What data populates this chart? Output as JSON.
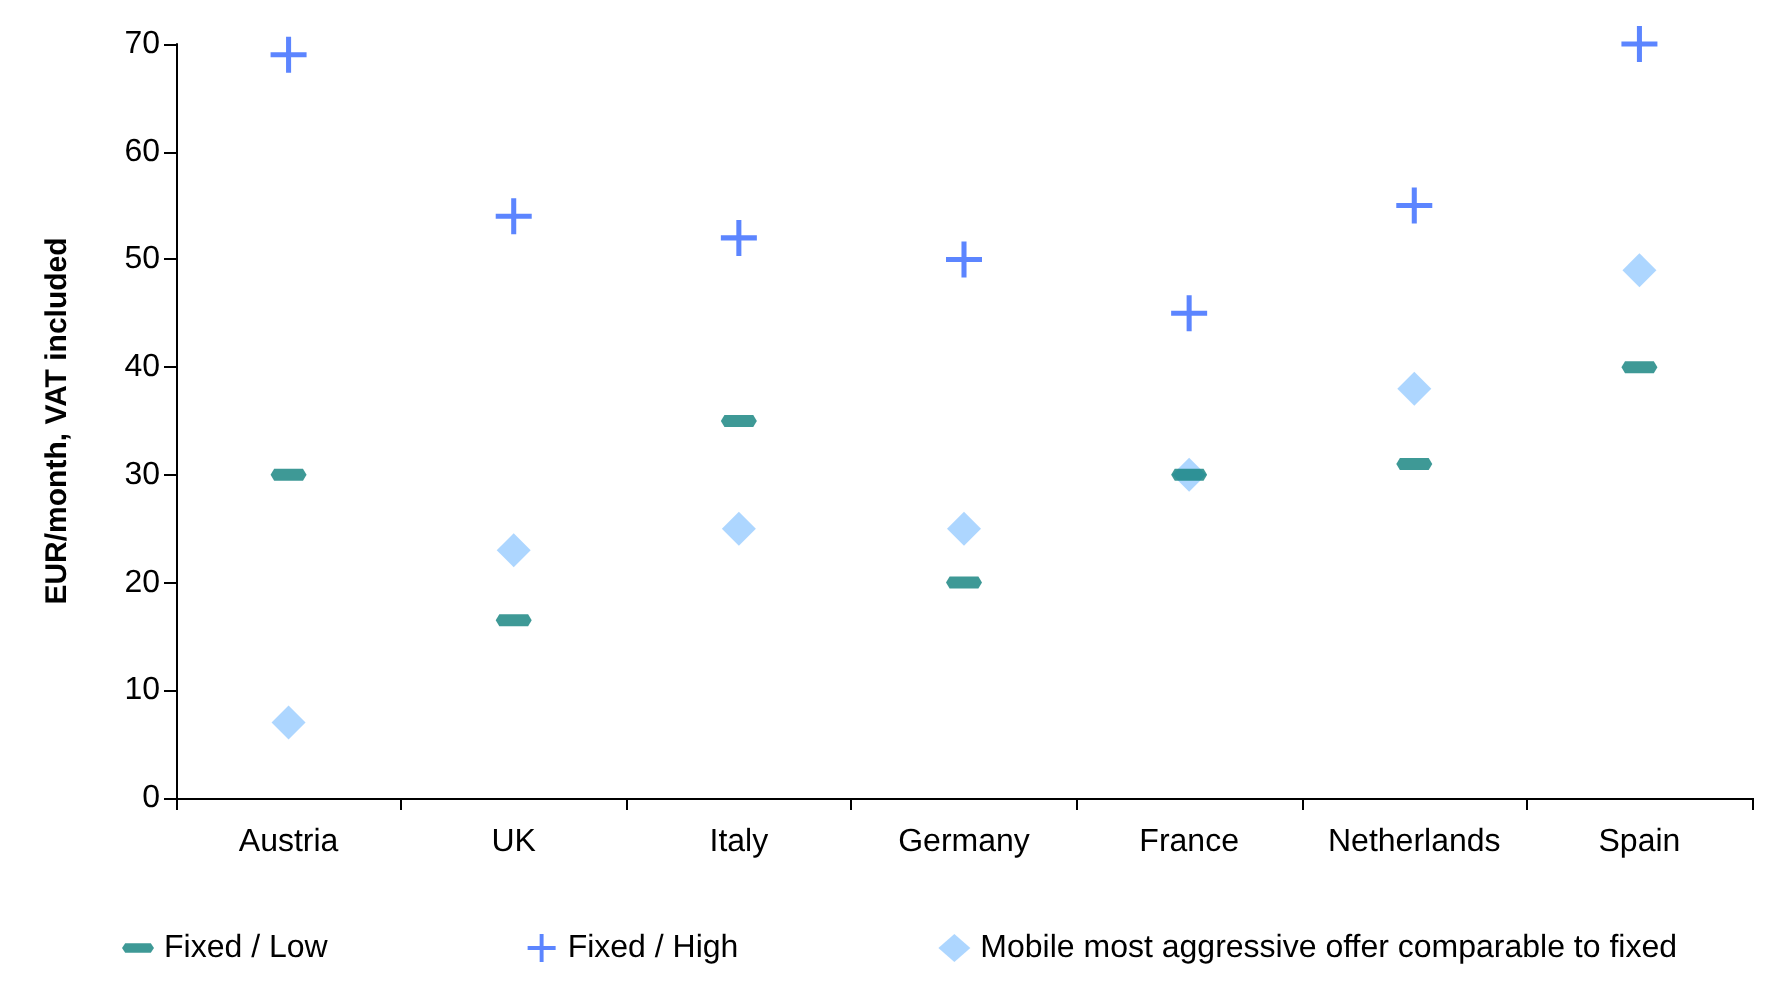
{
  "chart_data": {
    "type": "scatter",
    "ylabel": "EUR/month, VAT included",
    "categories": [
      "Austria",
      "UK",
      "Italy",
      "Germany",
      "France",
      "Netherlands",
      "Spain"
    ],
    "series": [
      {
        "name": "Fixed / Low",
        "color": "#0e7f7c",
        "values": [
          30,
          16.5,
          35,
          20,
          30,
          31,
          40
        ]
      },
      {
        "name": "Fixed / High",
        "color": "#3366ff",
        "marker": "cross",
        "values": [
          69,
          54,
          52,
          50,
          45,
          55,
          70
        ]
      },
      {
        "name": "Mobile most aggressive offer comparable to fixed",
        "color": "#99ccff",
        "marker": "diamond",
        "values": [
          7,
          23,
          25,
          25,
          30,
          38,
          49
        ]
      }
    ],
    "ylim": [
      0,
      70
    ],
    "yticks": [
      0,
      10,
      20,
      30,
      40,
      50,
      60,
      70
    ],
    "grid": false,
    "legend": "bottom"
  }
}
